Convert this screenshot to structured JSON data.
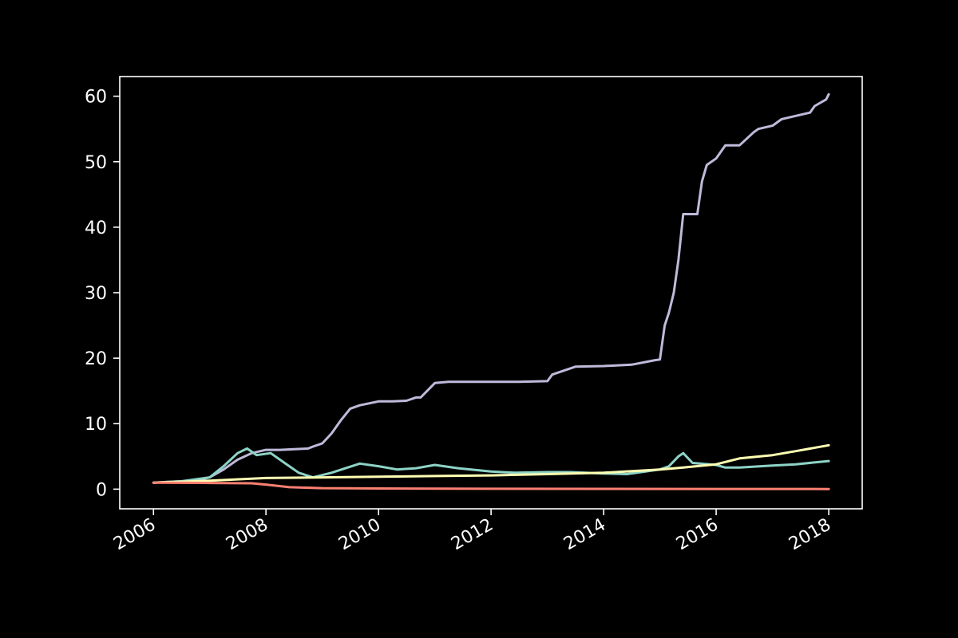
{
  "chart_data": {
    "type": "line",
    "title": "",
    "xlabel": "",
    "ylabel": "",
    "xlim": [
      "2005-05-27",
      "2018-08-06"
    ],
    "ylim": [
      -3,
      63
    ],
    "x_ticks": [
      "2006",
      "2008",
      "2010",
      "2012",
      "2014",
      "2016",
      "2018"
    ],
    "y_ticks": [
      0,
      10,
      20,
      30,
      40,
      50,
      60
    ],
    "grid": false,
    "legend": "none",
    "background": "#000000",
    "axes_color": "#ffffff",
    "series": [
      {
        "color": "#bebada",
        "x": [
          "2006-01-01",
          "2006-04-01",
          "2006-07-01",
          "2006-10-01",
          "2007-01-01",
          "2007-04-01",
          "2007-07-01",
          "2007-10-01",
          "2008-01-01",
          "2008-04-01",
          "2008-07-01",
          "2008-10-01",
          "2008-11-01",
          "2009-01-01",
          "2009-03-01",
          "2009-05-01",
          "2009-07-01",
          "2009-09-01",
          "2010-01-01",
          "2010-04-01",
          "2010-07-01",
          "2010-09-01",
          "2010-10-01",
          "2011-01-01",
          "2011-04-01",
          "2012-01-01",
          "2012-07-01",
          "2013-01-01",
          "2013-02-01",
          "2013-07-01",
          "2014-01-01",
          "2014-07-01",
          "2014-12-01",
          "2015-01-01",
          "2015-02-01",
          "2015-03-01",
          "2015-04-01",
          "2015-05-01",
          "2015-06-01",
          "2015-07-01",
          "2015-08-01",
          "2015-09-01",
          "2015-10-01",
          "2015-11-01",
          "2016-01-01",
          "2016-03-01",
          "2016-06-01",
          "2016-09-01",
          "2016-10-01",
          "2017-01-01",
          "2017-03-01",
          "2017-06-01",
          "2017-09-01",
          "2017-10-01",
          "2017-12-15",
          "2018-01-01"
        ],
        "y": [
          1,
          1.1,
          1.2,
          1.3,
          1.8,
          3,
          4.5,
          5.5,
          6,
          6,
          6.1,
          6.2,
          6.5,
          7,
          8.5,
          10.5,
          12.3,
          12.8,
          13.4,
          13.4,
          13.5,
          14,
          14,
          16.2,
          16.4,
          16.4,
          16.4,
          16.5,
          17.5,
          18.7,
          18.8,
          19,
          19.7,
          19.8,
          25,
          27,
          30,
          35,
          42,
          42,
          42,
          42,
          47,
          49.5,
          50.5,
          52.5,
          52.5,
          54.5,
          55,
          55.5,
          56.5,
          57,
          57.5,
          58.5,
          59.5,
          60.3
        ]
      },
      {
        "color": "#8dd3c7",
        "x": [
          "2006-01-01",
          "2006-07-01",
          "2007-01-01",
          "2007-04-01",
          "2007-07-01",
          "2007-09-01",
          "2007-11-01",
          "2008-02-01",
          "2008-05-01",
          "2008-08-01",
          "2008-11-01",
          "2009-03-01",
          "2009-06-01",
          "2009-09-01",
          "2010-01-01",
          "2010-05-01",
          "2010-09-01",
          "2011-01-01",
          "2011-06-01",
          "2012-01-01",
          "2012-06-01",
          "2013-01-01",
          "2013-06-01",
          "2014-01-01",
          "2014-06-01",
          "2015-01-01",
          "2015-03-01",
          "2015-05-01",
          "2015-06-01",
          "2015-08-01",
          "2016-01-01",
          "2016-03-01",
          "2016-06-01",
          "2017-01-01",
          "2017-06-01",
          "2018-01-01"
        ],
        "y": [
          1,
          1.2,
          1.8,
          3.5,
          5.5,
          6.2,
          5.2,
          5.5,
          4,
          2.5,
          1.8,
          2.5,
          3.2,
          3.9,
          3.5,
          3,
          3.2,
          3.7,
          3.2,
          2.7,
          2.5,
          2.6,
          2.6,
          2.4,
          2.3,
          3,
          3.5,
          5,
          5.5,
          4,
          3.7,
          3.3,
          3.3,
          3.6,
          3.8,
          4.3
        ]
      },
      {
        "color": "#ffffb3",
        "x": [
          "2006-01-01",
          "2007-01-01",
          "2008-01-01",
          "2009-01-01",
          "2010-01-01",
          "2011-01-01",
          "2012-01-01",
          "2013-01-01",
          "2014-01-01",
          "2015-01-01",
          "2015-06-01",
          "2016-01-01",
          "2016-06-01",
          "2017-01-01",
          "2017-06-01",
          "2018-01-01"
        ],
        "y": [
          1,
          1.3,
          1.7,
          1.8,
          1.9,
          2,
          2.1,
          2.3,
          2.5,
          3,
          3.3,
          3.8,
          4.7,
          5.2,
          5.8,
          6.7
        ]
      },
      {
        "color": "#fb8072",
        "x": [
          "2006-01-01",
          "2007-01-01",
          "2007-10-01",
          "2008-01-01",
          "2008-06-01",
          "2009-01-01",
          "2010-01-01",
          "2012-01-01",
          "2014-01-01",
          "2016-01-01",
          "2018-01-01"
        ],
        "y": [
          1,
          0.95,
          0.9,
          0.7,
          0.3,
          0.15,
          0.1,
          0.06,
          0.04,
          0.03,
          0.02
        ]
      }
    ]
  }
}
